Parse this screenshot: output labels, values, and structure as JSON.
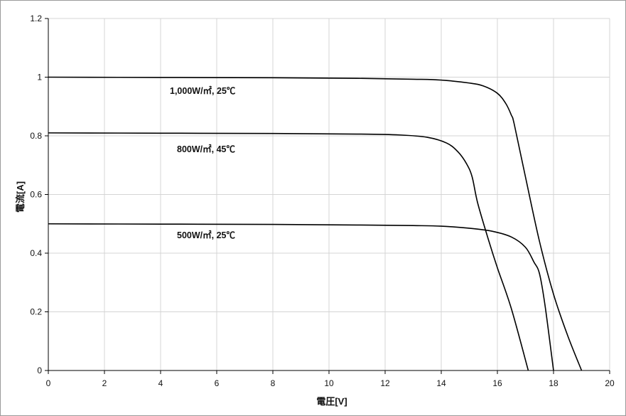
{
  "chart_data": {
    "type": "line",
    "title": "",
    "xlabel": "電圧[V]",
    "ylabel": "電流[A]",
    "xlim": [
      0,
      20
    ],
    "ylim": [
      0,
      1.2
    ],
    "xticks": [
      0,
      2,
      4,
      6,
      8,
      10,
      12,
      14,
      16,
      18,
      20
    ],
    "yticks": [
      0,
      0.2,
      0.4,
      0.6,
      0.8,
      1,
      1.2
    ],
    "x_tick_labels": [
      "0",
      "2",
      "4",
      "6",
      "8",
      "10",
      "12",
      "14",
      "16",
      "18",
      "20"
    ],
    "y_tick_labels": [
      "0",
      "0.2",
      "0.4",
      "0.6",
      "0.8",
      "1",
      "1.2"
    ],
    "grid": true,
    "line_color": "#000000",
    "grid_color": "#d4d4d4",
    "series": [
      {
        "name": "1,000W/㎡, 25℃",
        "points": [
          [
            0,
            1.0
          ],
          [
            4,
            0.999
          ],
          [
            8,
            0.998
          ],
          [
            11,
            0.996
          ],
          [
            13,
            0.993
          ],
          [
            14,
            0.99
          ],
          [
            15,
            0.98
          ],
          [
            15.5,
            0.97
          ],
          [
            16,
            0.945
          ],
          [
            16.3,
            0.91
          ],
          [
            16.5,
            0.87
          ],
          [
            16.6,
            0.84
          ],
          [
            17,
            0.66
          ],
          [
            17.5,
            0.44
          ],
          [
            18,
            0.26
          ],
          [
            18.5,
            0.12
          ],
          [
            19.0,
            0.0
          ]
        ]
      },
      {
        "name": "800W/㎡, 45℃",
        "points": [
          [
            0,
            0.81
          ],
          [
            4,
            0.809
          ],
          [
            8,
            0.808
          ],
          [
            11,
            0.806
          ],
          [
            12.5,
            0.803
          ],
          [
            13.5,
            0.795
          ],
          [
            14.2,
            0.775
          ],
          [
            14.6,
            0.745
          ],
          [
            14.9,
            0.705
          ],
          [
            15.1,
            0.66
          ],
          [
            15.3,
            0.57
          ],
          [
            15.7,
            0.44
          ],
          [
            16,
            0.35
          ],
          [
            16.5,
            0.21
          ],
          [
            17.1,
            0.0
          ]
        ]
      },
      {
        "name": "500W/㎡, 25℃",
        "points": [
          [
            0,
            0.5
          ],
          [
            4,
            0.499
          ],
          [
            8,
            0.498
          ],
          [
            11,
            0.496
          ],
          [
            13,
            0.494
          ],
          [
            14,
            0.492
          ],
          [
            15,
            0.485
          ],
          [
            15.8,
            0.475
          ],
          [
            16.5,
            0.455
          ],
          [
            17.0,
            0.42
          ],
          [
            17.3,
            0.37
          ],
          [
            17.5,
            0.33
          ],
          [
            17.7,
            0.22
          ],
          [
            18.0,
            0.0
          ]
        ]
      }
    ]
  }
}
